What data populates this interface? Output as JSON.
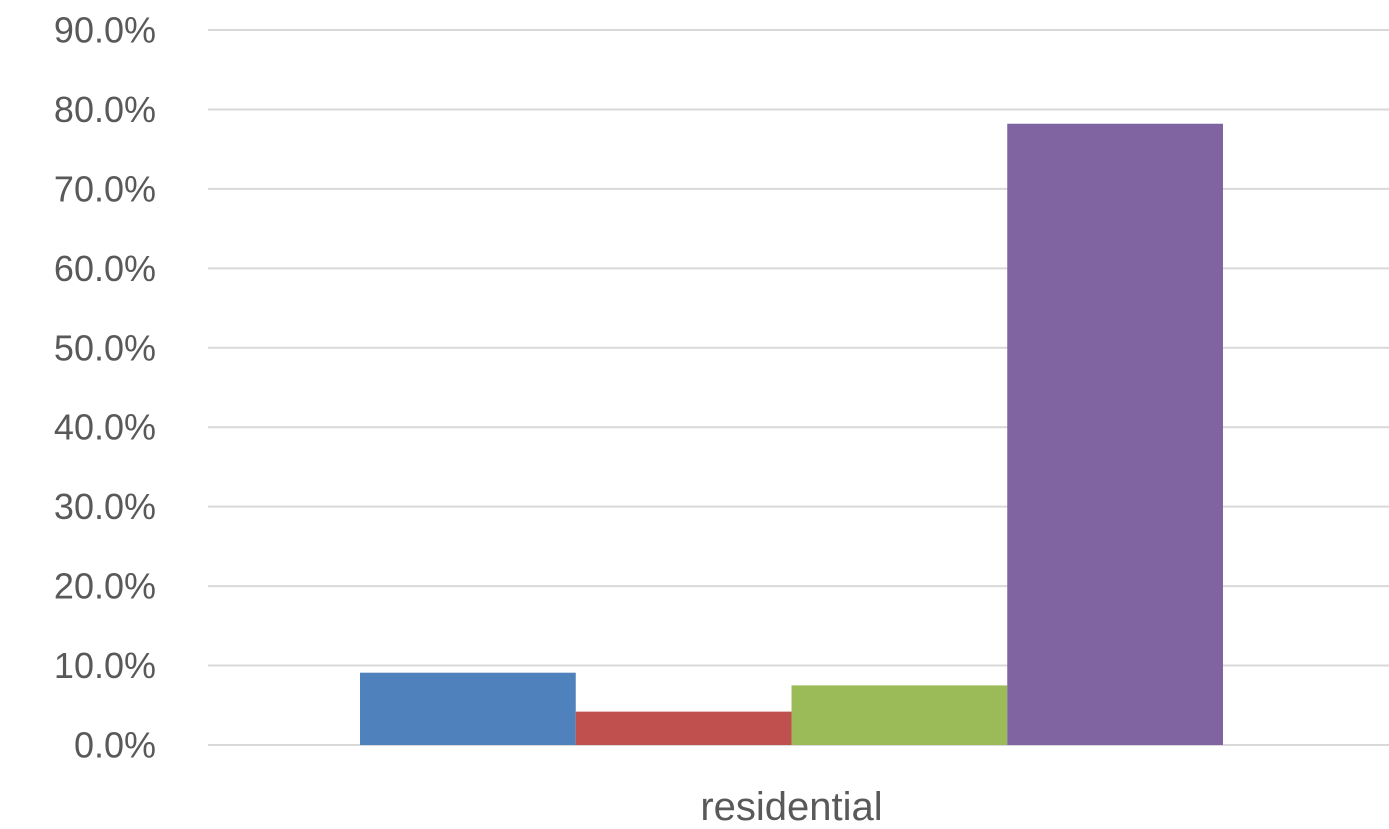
{
  "chart_data": {
    "type": "bar",
    "categories": [
      "residential"
    ],
    "series": [
      {
        "values": [
          9.1
        ],
        "color": "#4f81bd"
      },
      {
        "values": [
          4.2
        ],
        "color": "#c0504d"
      },
      {
        "values": [
          7.5
        ],
        "color": "#9bbb59"
      },
      {
        "values": [
          78.2
        ],
        "color": "#8064a2"
      }
    ],
    "ylim": [
      0,
      90
    ],
    "yticks": [
      0,
      10,
      20,
      30,
      40,
      50,
      60,
      70,
      80,
      90
    ],
    "ytick_labels": [
      "0.0%",
      "10.0%",
      "20.0%",
      "30.0%",
      "40.0%",
      "50.0%",
      "60.0%",
      "70.0%",
      "80.0%",
      "90.0%"
    ],
    "title": "",
    "xlabel": "",
    "ylabel": "",
    "grid": true,
    "legend": "none"
  }
}
